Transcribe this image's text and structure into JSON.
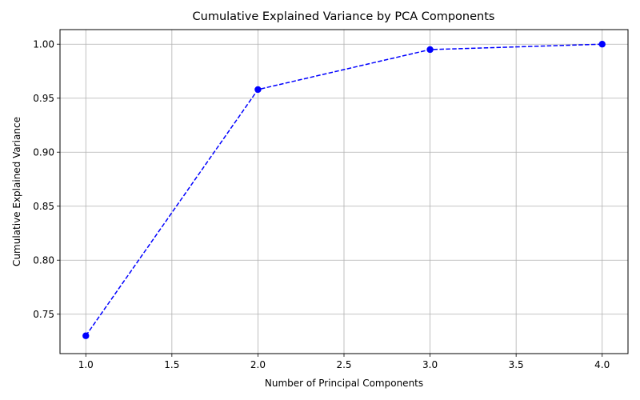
{
  "chart_data": {
    "type": "line",
    "title": "Cumulative Explained Variance by PCA Components",
    "xlabel": "Number of Principal Components",
    "ylabel": "Cumulative Explained Variance",
    "x": [
      1,
      2,
      3,
      4
    ],
    "series": [
      {
        "values": [
          0.73,
          0.958,
          0.995,
          1.0
        ],
        "color": "#0000ff",
        "line_style": "dashed",
        "marker": "circle"
      }
    ],
    "xlim": [
      0.85,
      4.15
    ],
    "ylim": [
      0.7135,
      1.0135
    ],
    "xticks": [
      1.0,
      1.5,
      2.0,
      2.5,
      3.0,
      3.5,
      4.0
    ],
    "xtick_labels": [
      "1.0",
      "1.5",
      "2.0",
      "2.5",
      "3.0",
      "3.5",
      "4.0"
    ],
    "yticks": [
      0.75,
      0.8,
      0.85,
      0.9,
      0.95,
      1.0
    ],
    "ytick_labels": [
      "0.75",
      "0.80",
      "0.85",
      "0.90",
      "0.95",
      "1.00"
    ],
    "grid": true,
    "grid_color": "#b0b0b0"
  }
}
